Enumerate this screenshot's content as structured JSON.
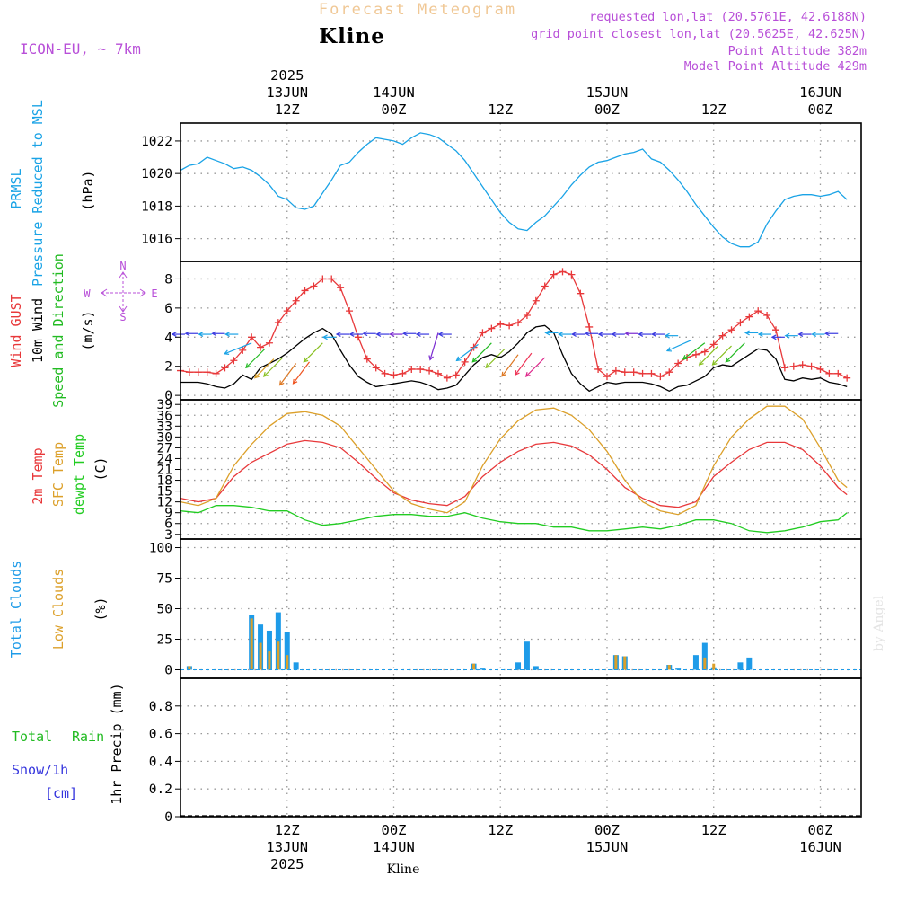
{
  "header": {
    "title_top": "Forecast Meteogram",
    "location": "Kline",
    "model": "ICON-EU, ~ 7km",
    "requested": "requested lon,lat (20.5761E, 42.6188N)",
    "gridpoint": "grid point closest lon,lat (20.5625E, 42.625N)",
    "point_alt": "Point Altitude 382m",
    "model_alt": "Model Point Altitude 429m",
    "footer_location": "Kline",
    "watermark": "by Angel"
  },
  "time_axis": {
    "top_labels": [
      {
        "t": 12,
        "lines": [
          "2025",
          "13JUN",
          "12Z"
        ]
      },
      {
        "t": 24,
        "lines": [
          "14JUN",
          "00Z"
        ]
      },
      {
        "t": 36,
        "lines": [
          "12Z"
        ]
      },
      {
        "t": 48,
        "lines": [
          "15JUN",
          "00Z"
        ]
      },
      {
        "t": 60,
        "lines": [
          "12Z"
        ]
      },
      {
        "t": 72,
        "lines": [
          "16JUN",
          "00Z"
        ]
      }
    ],
    "bottom_labels": [
      {
        "t": 12,
        "lines": [
          "12Z",
          "13JUN",
          "2025"
        ]
      },
      {
        "t": 24,
        "lines": [
          "00Z",
          "14JUN"
        ]
      },
      {
        "t": 36,
        "lines": [
          "12Z"
        ]
      },
      {
        "t": 48,
        "lines": [
          "00Z",
          "15JUN"
        ]
      },
      {
        "t": 60,
        "lines": [
          "12Z"
        ]
      },
      {
        "t": 72,
        "lines": [
          "00Z",
          "16JUN"
        ]
      }
    ]
  },
  "colors": {
    "pressure": "#1aa3e6",
    "gust": "#e8383a",
    "wind": "#000000",
    "dir_green": "#22bb22",
    "temp2m": "#e8383a",
    "sfc": "#dca02a",
    "dewpt": "#22cc22",
    "total_clouds": "#1e9be8",
    "low_clouds": "#dca02a",
    "rain": "#22bb22",
    "snow": "#3333dd",
    "compass": "#b84fd8",
    "title_top": "#f0c896",
    "info": "#b84fd8",
    "grid": "#999999"
  },
  "chart_data": [
    {
      "type": "line",
      "panel": "pressure",
      "labels": [
        "PRMSL",
        "Pressure Reduced to MSL",
        "(hPa)"
      ],
      "ylim": [
        1014.6,
        1023.1
      ],
      "yticks": [
        1016,
        1018,
        1020,
        1022
      ],
      "grid": true,
      "series": [
        {
          "name": "PRMSL",
          "x": [
            0,
            1,
            2,
            3,
            4,
            5,
            6,
            7,
            8,
            9,
            10,
            11,
            12,
            13,
            14,
            15,
            16,
            17,
            18,
            19,
            20,
            21,
            22,
            23,
            24,
            25,
            26,
            27,
            28,
            29,
            30,
            31,
            32,
            33,
            34,
            35,
            36,
            37,
            38,
            39,
            40,
            41,
            42,
            43,
            44,
            45,
            46,
            47,
            48,
            49,
            50,
            51,
            52,
            53,
            54,
            55,
            56,
            57,
            58,
            59,
            60,
            61,
            62,
            63,
            64,
            65,
            66,
            67,
            68,
            69,
            70,
            71,
            72,
            73,
            74,
            75
          ],
          "y": [
            1020.2,
            1020.5,
            1020.6,
            1021.0,
            1020.8,
            1020.6,
            1020.3,
            1020.4,
            1020.2,
            1019.8,
            1019.3,
            1018.6,
            1018.4,
            1017.9,
            1017.8,
            1018.0,
            1018.8,
            1019.6,
            1020.5,
            1020.7,
            1021.3,
            1021.8,
            1022.2,
            1022.1,
            1022.0,
            1021.8,
            1022.2,
            1022.5,
            1022.4,
            1022.2,
            1021.8,
            1021.4,
            1020.8,
            1020.0,
            1019.2,
            1018.4,
            1017.6,
            1017.0,
            1016.6,
            1016.5,
            1017.0,
            1017.4,
            1018.0,
            1018.6,
            1019.3,
            1019.9,
            1020.4,
            1020.7,
            1020.8,
            1021.0,
            1021.2,
            1021.3,
            1021.5,
            1020.9,
            1020.7,
            1020.2,
            1019.6,
            1018.9,
            1018.1,
            1017.4,
            1016.7,
            1016.1,
            1015.7,
            1015.5,
            1015.5,
            1015.8,
            1016.9,
            1017.7,
            1018.4,
            1018.6,
            1018.7,
            1018.7,
            1018.6,
            1018.7,
            1018.9,
            1018.4
          ]
        }
      ]
    },
    {
      "type": "line",
      "panel": "wind",
      "labels": [
        "Wind GUST",
        "10m Wind",
        "Speed and Direction",
        "(m/s)"
      ],
      "compass": {
        "N": "N",
        "S": "S",
        "E": "E",
        "W": "W"
      },
      "ylim": [
        -0.3,
        9.2
      ],
      "yticks": [
        0,
        2,
        4,
        6,
        8
      ],
      "grid": true,
      "series": [
        {
          "name": "Wind GUST",
          "markers": "+",
          "x": [
            0,
            1,
            2,
            3,
            4,
            5,
            6,
            7,
            8,
            9,
            10,
            11,
            12,
            13,
            14,
            15,
            16,
            17,
            18,
            19,
            20,
            21,
            22,
            23,
            24,
            25,
            26,
            27,
            28,
            29,
            30,
            31,
            32,
            33,
            34,
            35,
            36,
            37,
            38,
            39,
            40,
            41,
            42,
            43,
            44,
            45,
            46,
            47,
            48,
            49,
            50,
            51,
            52,
            53,
            54,
            55,
            56,
            57,
            58,
            59,
            60,
            61,
            62,
            63,
            64,
            65,
            66,
            67,
            68,
            69,
            70,
            71,
            72,
            73,
            74,
            75
          ],
          "y": [
            1.7,
            1.6,
            1.6,
            1.6,
            1.5,
            1.9,
            2.4,
            3.1,
            4.0,
            3.3,
            3.6,
            5.0,
            5.8,
            6.5,
            7.2,
            7.5,
            8.0,
            8.0,
            7.4,
            5.8,
            4.0,
            2.5,
            1.9,
            1.5,
            1.4,
            1.5,
            1.8,
            1.8,
            1.7,
            1.5,
            1.2,
            1.4,
            2.3,
            3.3,
            4.3,
            4.6,
            4.9,
            4.8,
            5.0,
            5.5,
            6.5,
            7.5,
            8.3,
            8.5,
            8.3,
            7.0,
            4.7,
            1.8,
            1.3,
            1.7,
            1.6,
            1.6,
            1.5,
            1.5,
            1.3,
            1.6,
            2.2,
            2.6,
            2.8,
            3.0,
            3.5,
            4.1,
            4.5,
            5.0,
            5.4,
            5.8,
            5.5,
            4.5,
            1.9,
            2.0,
            2.1,
            2.0,
            1.8,
            1.5,
            1.5,
            1.2
          ]
        },
        {
          "name": "10m Wind",
          "x": [
            0,
            1,
            2,
            3,
            4,
            5,
            6,
            7,
            8,
            9,
            10,
            11,
            12,
            13,
            14,
            15,
            16,
            17,
            18,
            19,
            20,
            21,
            22,
            23,
            24,
            25,
            26,
            27,
            28,
            29,
            30,
            31,
            32,
            33,
            34,
            35,
            36,
            37,
            38,
            39,
            40,
            41,
            42,
            43,
            44,
            45,
            46,
            47,
            48,
            49,
            50,
            51,
            52,
            53,
            54,
            55,
            56,
            57,
            58,
            59,
            60,
            61,
            62,
            63,
            64,
            65,
            66,
            67,
            68,
            69,
            70,
            71,
            72,
            73,
            74,
            75
          ],
          "y": [
            0.9,
            0.9,
            0.9,
            0.8,
            0.6,
            0.5,
            0.8,
            1.4,
            1.1,
            1.9,
            2.2,
            2.5,
            2.9,
            3.4,
            3.9,
            4.3,
            4.6,
            4.2,
            3.1,
            2.1,
            1.3,
            0.9,
            0.6,
            0.7,
            0.8,
            0.9,
            1.0,
            0.9,
            0.7,
            0.4,
            0.5,
            0.7,
            1.4,
            2.1,
            2.6,
            2.8,
            2.6,
            3.0,
            3.6,
            4.3,
            4.7,
            4.8,
            4.3,
            2.8,
            1.5,
            0.8,
            0.3,
            0.6,
            0.9,
            0.8,
            0.9,
            0.9,
            0.9,
            0.8,
            0.6,
            0.3,
            0.6,
            0.7,
            1.0,
            1.3,
            1.9,
            2.1,
            2.0,
            2.4,
            2.8,
            3.2,
            3.1,
            2.5,
            1.1,
            1.0,
            1.2,
            1.1,
            1.2,
            0.9,
            0.8,
            0.6
          ]
        }
      ]
    },
    {
      "type": "line",
      "panel": "temperature",
      "labels": [
        "2m Temp",
        "SFC Temp",
        "dewpt Temp",
        "(C)"
      ],
      "ylim": [
        1.7,
        40.3
      ],
      "yticks": [
        3,
        6,
        9,
        12,
        15,
        18,
        21,
        24,
        27,
        30,
        33,
        36,
        39
      ],
      "grid": true,
      "series": [
        {
          "name": "2m Temp",
          "x": [
            0,
            2,
            4,
            6,
            8,
            10,
            12,
            14,
            16,
            18,
            20,
            22,
            24,
            26,
            28,
            30,
            32,
            34,
            36,
            38,
            40,
            42,
            44,
            46,
            48,
            50,
            52,
            54,
            56,
            58,
            60,
            62,
            64,
            66,
            68,
            70,
            72,
            74,
            75
          ],
          "y": [
            13,
            12,
            13,
            19,
            23,
            25.5,
            28,
            29,
            28.5,
            27,
            23,
            18.5,
            14.5,
            12.5,
            11.5,
            11,
            13.5,
            19,
            23,
            26,
            28,
            28.5,
            27.5,
            25,
            21,
            16,
            13,
            11,
            10.5,
            12,
            19,
            23,
            26.5,
            28.5,
            28.5,
            26.5,
            22,
            16,
            14
          ]
        },
        {
          "name": "SFC Temp",
          "x": [
            0,
            2,
            4,
            6,
            8,
            10,
            12,
            14,
            16,
            18,
            20,
            22,
            24,
            26,
            28,
            30,
            32,
            34,
            36,
            38,
            40,
            42,
            44,
            46,
            48,
            50,
            52,
            54,
            56,
            58,
            60,
            62,
            64,
            66,
            68,
            70,
            72,
            74,
            75
          ],
          "y": [
            12,
            11,
            13,
            22,
            28,
            33,
            36.5,
            37,
            36,
            33,
            27,
            21,
            15,
            11.5,
            10,
            9,
            12,
            22,
            29.5,
            34.5,
            37.5,
            38,
            36,
            32,
            26,
            18,
            12,
            9.5,
            8.5,
            11,
            22,
            30,
            35,
            38.5,
            38.5,
            35,
            27,
            18,
            16
          ]
        },
        {
          "name": "dewpt Temp",
          "x": [
            0,
            2,
            4,
            6,
            8,
            10,
            12,
            14,
            16,
            18,
            20,
            22,
            24,
            26,
            28,
            30,
            32,
            34,
            36,
            38,
            40,
            42,
            44,
            46,
            48,
            50,
            52,
            54,
            56,
            58,
            60,
            62,
            64,
            66,
            68,
            70,
            72,
            74,
            75
          ],
          "y": [
            9.5,
            9,
            11,
            11,
            10.5,
            9.5,
            9.5,
            7,
            5.5,
            6,
            7,
            8,
            8.5,
            8.5,
            8,
            8,
            9,
            7.5,
            6.5,
            6,
            6,
            5,
            5,
            4,
            4,
            4.5,
            5,
            4.5,
            5.5,
            7,
            7,
            6,
            4,
            3.5,
            4,
            5,
            6.5,
            7,
            9
          ]
        }
      ]
    },
    {
      "type": "bar",
      "panel": "clouds",
      "labels": [
        "Total Clouds",
        "Low Clouds",
        "(%)"
      ],
      "ylim": [
        -7,
        107
      ],
      "yticks": [
        0,
        25,
        50,
        75,
        100
      ],
      "grid": true,
      "bar_series": [
        {
          "name": "Total Clouds",
          "x": [
            1,
            8,
            9,
            10,
            11,
            12,
            13,
            33,
            34,
            38,
            39,
            40,
            49,
            50,
            55,
            56,
            58,
            59,
            60,
            63,
            64
          ],
          "y": [
            3,
            45,
            37,
            32,
            47,
            31,
            6,
            5,
            1,
            6,
            23,
            3,
            12,
            11,
            4,
            1,
            12,
            22,
            2,
            6,
            10
          ]
        },
        {
          "name": "Low Clouds",
          "x": [
            1,
            8,
            9,
            10,
            11,
            12,
            33,
            49,
            50,
            55,
            59,
            60
          ],
          "y": [
            3,
            42,
            22,
            15,
            23,
            12,
            5,
            12,
            11,
            4,
            10,
            5
          ]
        }
      ]
    },
    {
      "type": "line",
      "panel": "precip",
      "labels": [
        "Total",
        "Rain",
        "Snow/1h",
        "[cm]",
        "1hr Precip (mm)"
      ],
      "ylim": [
        0,
        1
      ],
      "yticks": [
        "0",
        "0.2",
        "0.4",
        "0.6",
        "0.8"
      ],
      "grid": true,
      "series": []
    }
  ]
}
